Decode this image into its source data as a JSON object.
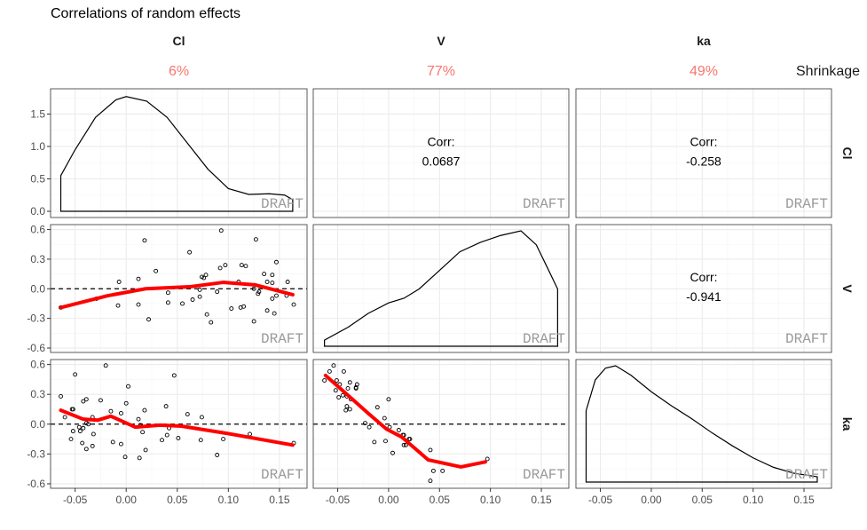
{
  "chart_data": {
    "type": "pairs",
    "title": "Correlations of random effects",
    "variables": [
      "Cl",
      "V",
      "ka"
    ],
    "shrinkage_label": "Shrinkage",
    "shrinkage": [
      "6%",
      "77%",
      "49%"
    ],
    "shrinkage_color": "#F8766D",
    "smooth_color": "#FF0000",
    "watermark": "DRAFT",
    "corr_label": "Corr:",
    "correlations": {
      "Cl_V": "0.0687",
      "Cl_ka": "-0.258",
      "V_ka": "-0.941"
    },
    "x_ticks": [
      "-0.05",
      "0.00",
      "0.05",
      "0.10",
      "0.15"
    ],
    "x_tick_values": [
      -0.05,
      0,
      0.05,
      0.1,
      0.15
    ],
    "xlim": [
      -0.074,
      0.177
    ],
    "y_ticks_row1": [
      "0.0",
      "0.5",
      "1.0",
      "1.5"
    ],
    "y_tick_values_row1": [
      0,
      0.5,
      1.0,
      1.5
    ],
    "ylim_row1": [
      -0.096,
      1.89
    ],
    "y_ticks": [
      "-0.6",
      "-0.3",
      "0.0",
      "0.3",
      "0.6"
    ],
    "y_tick_values": [
      -0.6,
      -0.3,
      0,
      0.3,
      0.6
    ],
    "ylim": [
      -0.645,
      0.65
    ],
    "grid": true,
    "density_Cl": [
      [
        -0.064,
        0.55
      ],
      [
        -0.05,
        0.95
      ],
      [
        -0.03,
        1.45
      ],
      [
        -0.01,
        1.72
      ],
      [
        0.0,
        1.77
      ],
      [
        0.02,
        1.7
      ],
      [
        0.04,
        1.45
      ],
      [
        0.06,
        1.05
      ],
      [
        0.08,
        0.65
      ],
      [
        0.1,
        0.35
      ],
      [
        0.12,
        0.26
      ],
      [
        0.14,
        0.27
      ],
      [
        0.155,
        0.25
      ],
      [
        0.163,
        0.18
      ]
    ],
    "density_V_relative": [
      [
        -0.063,
        0.06
      ],
      [
        -0.04,
        0.17
      ],
      [
        -0.02,
        0.29
      ],
      [
        0.0,
        0.38
      ],
      [
        0.015,
        0.42
      ],
      [
        0.03,
        0.5
      ],
      [
        0.05,
        0.66
      ],
      [
        0.07,
        0.82
      ],
      [
        0.09,
        0.9
      ],
      [
        0.11,
        0.96
      ],
      [
        0.13,
        1.0
      ],
      [
        0.145,
        0.88
      ],
      [
        0.155,
        0.7
      ],
      [
        0.166,
        0.5
      ]
    ],
    "density_ka_relative": [
      [
        -0.064,
        0.62
      ],
      [
        -0.055,
        0.88
      ],
      [
        -0.045,
        0.98
      ],
      [
        -0.035,
        1.0
      ],
      [
        -0.02,
        0.92
      ],
      [
        0,
        0.78
      ],
      [
        0.02,
        0.66
      ],
      [
        0.04,
        0.55
      ],
      [
        0.06,
        0.43
      ],
      [
        0.08,
        0.32
      ],
      [
        0.1,
        0.22
      ],
      [
        0.12,
        0.14
      ],
      [
        0.14,
        0.09
      ],
      [
        0.163,
        0.06
      ]
    ],
    "scatter_Cl_V": [
      [
        -0.064,
        -0.19
      ],
      [
        -0.029,
        -0.1
      ],
      [
        -0.007,
        0.07
      ],
      [
        -0.008,
        -0.17
      ],
      [
        0.012,
        0.1
      ],
      [
        0.012,
        -0.16
      ],
      [
        0.018,
        0.49
      ],
      [
        0.022,
        -0.31
      ],
      [
        0.029,
        0.18
      ],
      [
        0.041,
        -0.04
      ],
      [
        0.041,
        -0.14
      ],
      [
        0.055,
        -0.15
      ],
      [
        0.062,
        0.37
      ],
      [
        0.065,
        -0.11
      ],
      [
        0.072,
        -0.01
      ],
      [
        0.072,
        -0.08
      ],
      [
        0.074,
        0.12
      ],
      [
        0.076,
        0.11
      ],
      [
        0.078,
        0.14
      ],
      [
        0.079,
        -0.26
      ],
      [
        0.083,
        -0.34
      ],
      [
        0.089,
        -0.03
      ],
      [
        0.092,
        0.21
      ],
      [
        0.093,
        0.59
      ],
      [
        0.097,
        0.24
      ],
      [
        0.103,
        -0.2
      ],
      [
        0.11,
        0.07
      ],
      [
        0.112,
        -0.19
      ],
      [
        0.113,
        0.24
      ],
      [
        0.115,
        -0.18
      ],
      [
        0.117,
        0.23
      ],
      [
        0.125,
        0.0
      ],
      [
        0.125,
        -0.33
      ],
      [
        0.127,
        0.5
      ],
      [
        0.129,
        -0.05
      ],
      [
        0.13,
        -0.03
      ],
      [
        0.135,
        0.15
      ],
      [
        0.138,
        0.07
      ],
      [
        0.138,
        -0.22
      ],
      [
        0.143,
        0.14
      ],
      [
        0.143,
        0.06
      ],
      [
        0.143,
        -0.1
      ],
      [
        0.145,
        -0.25
      ],
      [
        0.147,
        0.27
      ],
      [
        0.147,
        -0.07
      ],
      [
        0.157,
        -0.07
      ],
      [
        0.158,
        0.07
      ],
      [
        0.164,
        -0.16
      ]
    ],
    "smooth_Cl_V": [
      [
        -0.064,
        -0.19
      ],
      [
        -0.018,
        -0.07
      ],
      [
        0.019,
        0.0
      ],
      [
        0.062,
        0.02
      ],
      [
        0.095,
        0.065
      ],
      [
        0.126,
        0.04
      ],
      [
        0.163,
        -0.06
      ]
    ],
    "scatter_Cl_ka": [
      [
        -0.064,
        0.28
      ],
      [
        -0.06,
        0.07
      ],
      [
        -0.054,
        -0.15
      ],
      [
        -0.053,
        0.15
      ],
      [
        -0.052,
        0.15
      ],
      [
        -0.052,
        -0.07
      ],
      [
        -0.05,
        0.5
      ],
      [
        -0.046,
        -0.03
      ],
      [
        -0.045,
        -0.07
      ],
      [
        -0.043,
        -0.19
      ],
      [
        -0.042,
        0.23
      ],
      [
        -0.042,
        -0.04
      ],
      [
        -0.039,
        0.25
      ],
      [
        -0.039,
        -0.25
      ],
      [
        -0.039,
        0.01
      ],
      [
        -0.037,
        0.0
      ],
      [
        -0.033,
        -0.22
      ],
      [
        -0.033,
        0.07
      ],
      [
        -0.032,
        -0.1
      ],
      [
        -0.025,
        0.24
      ],
      [
        -0.02,
        0.59
      ],
      [
        -0.015,
        0.13
      ],
      [
        -0.013,
        -0.18
      ],
      [
        -0.005,
        -0.2
      ],
      [
        -0.005,
        0.11
      ],
      [
        -0.001,
        -0.33
      ],
      [
        0.0,
        0.21
      ],
      [
        0.002,
        0.38
      ],
      [
        0.012,
        0.05
      ],
      [
        0.013,
        -0.34
      ],
      [
        0.014,
        -0.01
      ],
      [
        0.016,
        -0.08
      ],
      [
        0.018,
        0.14
      ],
      [
        0.019,
        -0.26
      ],
      [
        0.035,
        -0.16
      ],
      [
        0.039,
        0.18
      ],
      [
        0.04,
        -0.11
      ],
      [
        0.042,
        -0.04
      ],
      [
        0.047,
        0.49
      ],
      [
        0.051,
        -0.14
      ],
      [
        0.06,
        0.1
      ],
      [
        0.073,
        -0.16
      ],
      [
        0.074,
        0.07
      ],
      [
        0.089,
        -0.31
      ],
      [
        0.095,
        -0.15
      ],
      [
        0.121,
        -0.1
      ],
      [
        0.164,
        -0.19
      ]
    ],
    "smooth_Cl_ka": [
      [
        -0.064,
        0.14
      ],
      [
        -0.042,
        0.05
      ],
      [
        -0.028,
        0.04
      ],
      [
        -0.015,
        0.08
      ],
      [
        -0.004,
        0.03
      ],
      [
        0.009,
        -0.03
      ],
      [
        0.033,
        -0.01
      ],
      [
        0.054,
        -0.02
      ],
      [
        0.097,
        -0.09
      ],
      [
        0.163,
        -0.21
      ]
    ],
    "scatter_V_ka": [
      [
        -0.063,
        0.44
      ],
      [
        -0.058,
        0.53
      ],
      [
        -0.054,
        0.59
      ],
      [
        -0.052,
        0.34
      ],
      [
        -0.051,
        0.44
      ],
      [
        -0.049,
        0.27
      ],
      [
        -0.048,
        0.4
      ],
      [
        -0.045,
        0.29
      ],
      [
        -0.044,
        0.53
      ],
      [
        -0.042,
        0.14
      ],
      [
        -0.041,
        0.28
      ],
      [
        -0.041,
        0.18
      ],
      [
        -0.04,
        0.36
      ],
      [
        -0.038,
        0.42
      ],
      [
        -0.038,
        0.15
      ],
      [
        -0.037,
        0.25
      ],
      [
        -0.032,
        0.37
      ],
      [
        -0.032,
        0.36
      ],
      [
        -0.031,
        0.4
      ],
      [
        -0.023,
        0.01
      ],
      [
        -0.019,
        -0.03
      ],
      [
        -0.014,
        -0.18
      ],
      [
        -0.011,
        0.17
      ],
      [
        -0.004,
        0.06
      ],
      [
        -0.003,
        -0.17
      ],
      [
        0.0,
        0.25
      ],
      [
        0.001,
        -0.03
      ],
      [
        0.004,
        -0.29
      ],
      [
        0.01,
        -0.06
      ],
      [
        0.014,
        -0.11
      ],
      [
        0.015,
        -0.11
      ],
      [
        0.015,
        -0.21
      ],
      [
        0.017,
        -0.21
      ],
      [
        0.02,
        -0.15
      ],
      [
        0.021,
        -0.15
      ],
      [
        0.041,
        -0.57
      ],
      [
        0.041,
        -0.26
      ],
      [
        0.044,
        -0.47
      ],
      [
        0.053,
        -0.47
      ],
      [
        0.097,
        -0.35
      ]
    ],
    "smooth_V_ka": [
      [
        -0.062,
        0.49
      ],
      [
        -0.042,
        0.31
      ],
      [
        -0.019,
        0.1
      ],
      [
        -0.002,
        -0.05
      ],
      [
        0.013,
        -0.13
      ],
      [
        0.039,
        -0.36
      ],
      [
        0.071,
        -0.43
      ],
      [
        0.095,
        -0.38
      ]
    ]
  }
}
